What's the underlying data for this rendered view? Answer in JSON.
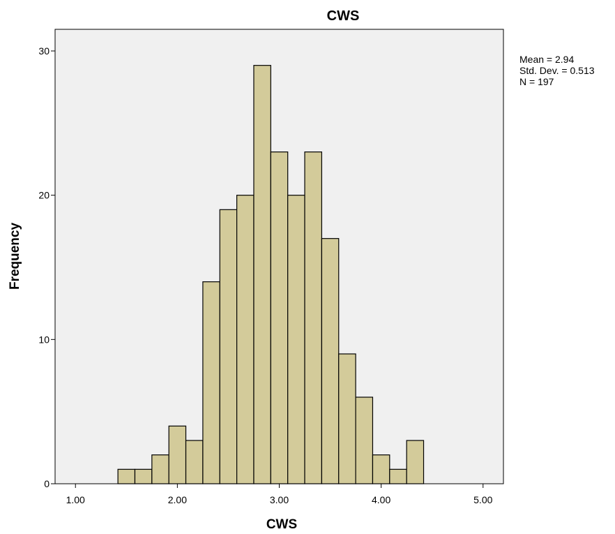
{
  "chart_data": {
    "type": "bar",
    "subtype": "histogram",
    "title": "CWS",
    "xlabel": "CWS",
    "ylabel": "Frequency",
    "xlim": [
      0.8,
      5.2
    ],
    "ylim": [
      0,
      31.5
    ],
    "bin_width": 0.1667,
    "bins": [
      {
        "x0": 1.4167,
        "x1": 1.5833,
        "count": 1
      },
      {
        "x0": 1.5833,
        "x1": 1.75,
        "count": 1
      },
      {
        "x0": 1.75,
        "x1": 1.9167,
        "count": 2
      },
      {
        "x0": 1.9167,
        "x1": 2.0833,
        "count": 4
      },
      {
        "x0": 2.0833,
        "x1": 2.25,
        "count": 3
      },
      {
        "x0": 2.25,
        "x1": 2.4167,
        "count": 14
      },
      {
        "x0": 2.4167,
        "x1": 2.5833,
        "count": 19
      },
      {
        "x0": 2.5833,
        "x1": 2.75,
        "count": 20
      },
      {
        "x0": 2.75,
        "x1": 2.9167,
        "count": 29
      },
      {
        "x0": 2.9167,
        "x1": 3.0833,
        "count": 23
      },
      {
        "x0": 3.0833,
        "x1": 3.25,
        "count": 20
      },
      {
        "x0": 3.25,
        "x1": 3.4167,
        "count": 23
      },
      {
        "x0": 3.4167,
        "x1": 3.5833,
        "count": 17
      },
      {
        "x0": 3.5833,
        "x1": 3.75,
        "count": 9
      },
      {
        "x0": 3.75,
        "x1": 3.9167,
        "count": 6
      },
      {
        "x0": 3.9167,
        "x1": 4.0833,
        "count": 2
      },
      {
        "x0": 4.0833,
        "x1": 4.25,
        "count": 1
      },
      {
        "x0": 4.25,
        "x1": 4.4167,
        "count": 3
      }
    ],
    "x_ticks": [
      {
        "value": 1,
        "label": "1.00"
      },
      {
        "value": 2,
        "label": "2.00"
      },
      {
        "value": 3,
        "label": "3.00"
      },
      {
        "value": 4,
        "label": "4.00"
      },
      {
        "value": 5,
        "label": "5.00"
      }
    ],
    "y_ticks": [
      {
        "value": 0,
        "label": "0"
      },
      {
        "value": 10,
        "label": "10"
      },
      {
        "value": 20,
        "label": "20"
      },
      {
        "value": 30,
        "label": "30"
      }
    ],
    "stats": [
      "Mean = 2.94",
      "Std. Dev. = 0.513",
      "N = 197"
    ],
    "grid": false,
    "colors": {
      "bar_fill": "#d3cb9a",
      "bar_stroke": "#000000",
      "plot_background": "#f0f0f0",
      "frame": "#000000"
    }
  }
}
